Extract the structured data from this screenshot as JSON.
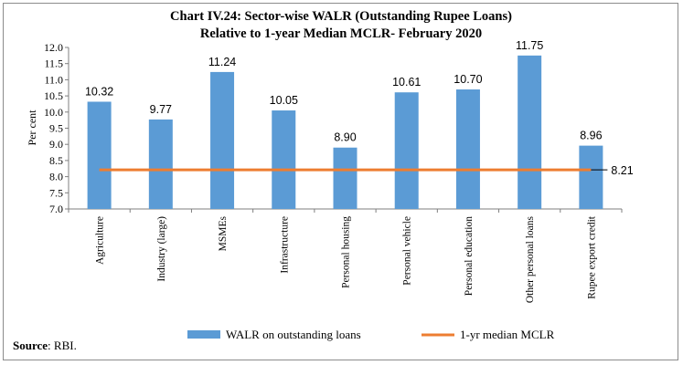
{
  "chart_data": {
    "type": "bar",
    "title_line1": "Chart IV.24: Sector-wise WALR (Outstanding Rupee Loans)",
    "title_line2": "Relative to 1-year Median MCLR- February 2020",
    "ylabel": "Per cent",
    "ylim": [
      7.0,
      12.0
    ],
    "ytick_step": 0.5,
    "yticks": [
      "7.0",
      "7.5",
      "8.0",
      "8.5",
      "9.0",
      "9.5",
      "10.0",
      "10.5",
      "11.0",
      "11.5",
      "12.0"
    ],
    "categories": [
      "Agriculture",
      "Industry (large)",
      "MSMEs",
      "Infrastructure",
      "Personal housing",
      "Personal vehicle",
      "Personal education",
      "Other personal loans",
      "Rupee export credit"
    ],
    "series": [
      {
        "name": "WALR on outstanding loans",
        "type": "bar",
        "values": [
          10.32,
          9.77,
          11.24,
          10.05,
          8.9,
          10.61,
          10.7,
          11.75,
          8.96
        ],
        "labels": [
          "10.32",
          "9.77",
          "11.24",
          "10.05",
          "8.90",
          "10.61",
          "10.70",
          "11.75",
          "8.96"
        ],
        "color": "#5b9bd5"
      },
      {
        "name": "1-yr median MCLR",
        "type": "line",
        "value": 8.21,
        "label": "8.21",
        "color": "#ed7d31"
      }
    ],
    "legend_position": "bottom"
  },
  "footer": {
    "source_prefix": "Source",
    "source_text": ": RBI."
  }
}
